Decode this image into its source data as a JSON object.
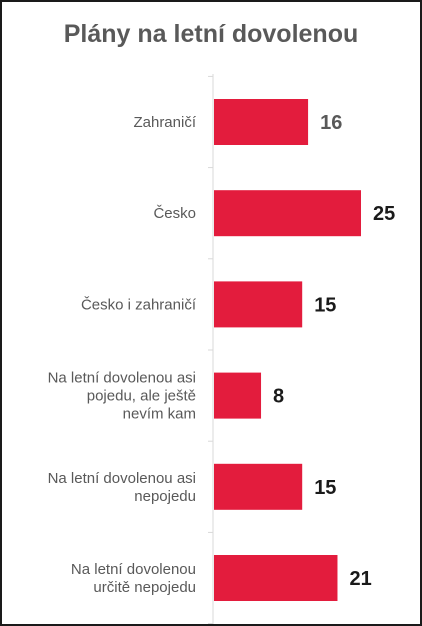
{
  "chart_data": {
    "type": "bar",
    "orientation": "horizontal",
    "title": "Plány na letní dovolenou",
    "categories": [
      "Zahraničí",
      "Česko",
      "Česko i zahraničí",
      "Na letní dovolenou asi pojedu, ale ještě nevím kam",
      "Na letní dovolenou asi nepojedu",
      "Na letní dovolenou určitě nepojedu"
    ],
    "values": [
      16,
      25,
      15,
      8,
      15,
      21
    ],
    "xlim": [
      0,
      25
    ],
    "grid": false,
    "legend": "none",
    "colors": {
      "bar": "#e31c3d",
      "axis": "#d9d9d9",
      "category_text": "#595959",
      "value_text_first": "#595959",
      "value_text_rest": "#1a1a1a"
    }
  }
}
